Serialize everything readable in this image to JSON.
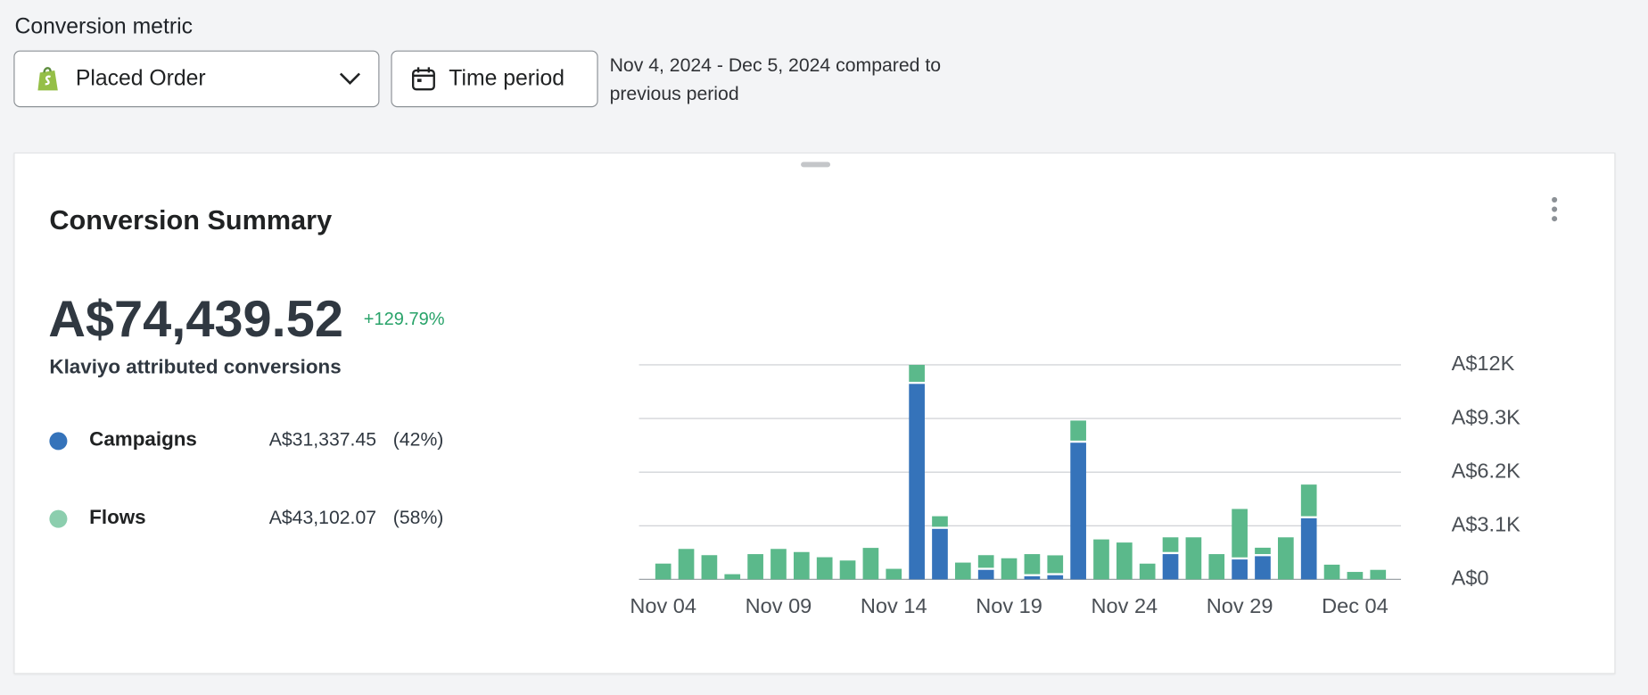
{
  "metric_label": "Conversion metric",
  "metric_select": "Placed Order",
  "time_button": "Time period",
  "date_range": "Nov 4, 2024 - Dec 5, 2024 compared to previous period",
  "card": {
    "title": "Conversion Summary",
    "total": "A$74,439.52",
    "change": "+129.79%",
    "total_caption": "Klaviyo attributed conversions",
    "legend": [
      {
        "amount": "A$31,337.45",
        "share": "(42%)"
      },
      {
        "amount": "A$43,102.07",
        "share": "(58%)"
      }
    ]
  },
  "chart_data": {
    "type": "bar",
    "stacked": true,
    "categories": [
      "Nov 04",
      null,
      null,
      null,
      null,
      "Nov 09",
      null,
      null,
      null,
      null,
      "Nov 14",
      null,
      null,
      null,
      null,
      "Nov 19",
      null,
      null,
      null,
      null,
      "Nov 24",
      null,
      null,
      null,
      null,
      "Nov 29",
      null,
      null,
      null,
      null,
      "Dec 04",
      null
    ],
    "series": [
      {
        "name": "Campaigns",
        "color": "#3573ba",
        "values": [
          0,
          0,
          0,
          0,
          0,
          0,
          0,
          0,
          0,
          0,
          0,
          11300,
          2920,
          0,
          550,
          0,
          180,
          240,
          7900,
          0,
          0,
          0,
          1460,
          0,
          0,
          1150,
          1340,
          0,
          3530,
          0,
          0,
          0
        ]
      },
      {
        "name": "Flows",
        "color": "#5bb98b",
        "values": [
          912,
          1760,
          1400,
          300,
          1460,
          1760,
          1580,
          1280,
          1090,
          1820,
          610,
          1100,
          730,
          970,
          850,
          1220,
          1280,
          1150,
          1280,
          2310,
          2130,
          910,
          970,
          2430,
          1460,
          2920,
          490,
          2430,
          1950,
          850,
          430,
          550
        ]
      }
    ],
    "ylim": [
      0,
      12400
    ],
    "yticks": [
      {
        "value": 0,
        "label": "A$0"
      },
      {
        "value": 3100,
        "label": "A$3.1K"
      },
      {
        "value": 6200,
        "label": "A$6.2K"
      },
      {
        "value": 9300,
        "label": "A$9.3K"
      },
      {
        "value": 12400,
        "label": "A$12K"
      }
    ],
    "grid": true
  }
}
